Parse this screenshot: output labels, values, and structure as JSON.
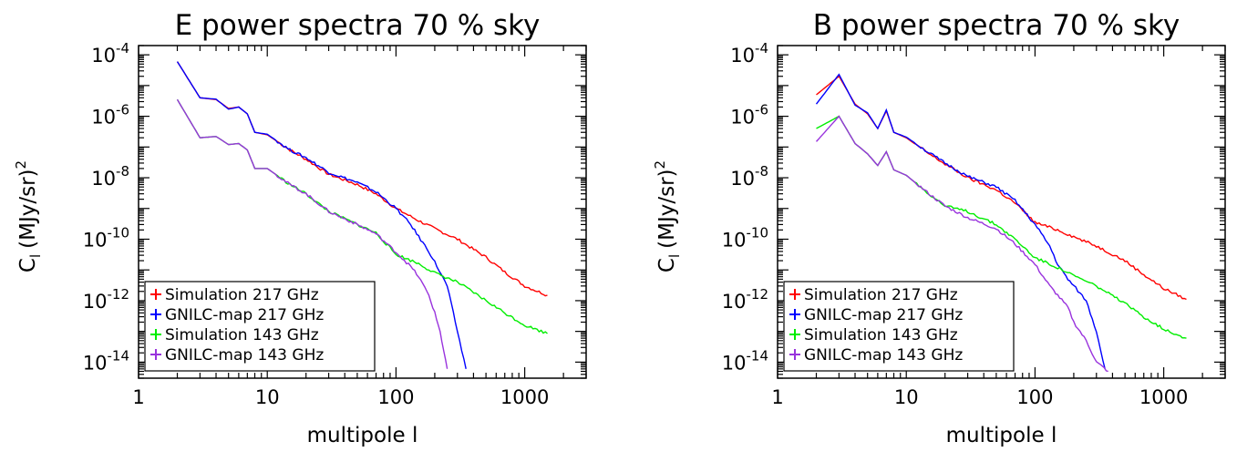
{
  "chart_data": [
    {
      "type": "line",
      "title": "E power spectra 70 % sky",
      "xlabel": "multipole l",
      "ylabel_base": "C",
      "ylabel_sub": "l",
      "ylabel_rest": "(MJy/sr)",
      "ylabel_sup": "2",
      "xscale": "log",
      "yscale": "log",
      "xlim": [
        1,
        3000
      ],
      "ylim": [
        3e-15,
        0.0002
      ],
      "x_ticks": [
        1,
        10,
        100,
        1000
      ],
      "x_tick_labels": [
        "1",
        "10",
        "100",
        "1000"
      ],
      "y_ticks": [
        1e-14,
        1e-12,
        1e-10,
        1e-08,
        1e-06,
        0.0001
      ],
      "y_tick_labels": [
        [
          "10",
          "-14"
        ],
        [
          "10",
          "-12"
        ],
        [
          "10",
          "-10"
        ],
        [
          "10",
          "-8"
        ],
        [
          "10",
          "-6"
        ],
        [
          "10",
          "-4"
        ]
      ],
      "legend_position": "bottom-left",
      "series": [
        {
          "name": "Simulation 217 GHz",
          "color": "#ff0000",
          "x": [
            2,
            3,
            4,
            5,
            6,
            7,
            8,
            10,
            15,
            20,
            30,
            50,
            70,
            100,
            150,
            200,
            300,
            500,
            700,
            1000,
            1500
          ],
          "y": [
            6e-05,
            4e-06,
            3.5e-06,
            1.8e-06,
            2e-06,
            1.2e-06,
            3e-07,
            2.5e-07,
            8e-08,
            4e-08,
            1.3e-08,
            6e-09,
            3e-09,
            1e-09,
            4e-10,
            2.2e-10,
            1e-10,
            2.6e-11,
            8.5e-12,
            3e-12,
            1.5e-12
          ]
        },
        {
          "name": "GNILC-map 217 GHz",
          "color": "#0000ff",
          "x": [
            2,
            3,
            4,
            5,
            6,
            7,
            8,
            10,
            15,
            20,
            30,
            50,
            70,
            100,
            130,
            150,
            180,
            200,
            250,
            300,
            350
          ],
          "y": [
            6e-05,
            4e-06,
            3.6e-06,
            1.7e-06,
            2e-06,
            1.2e-06,
            3e-07,
            2.6e-07,
            8e-08,
            4.5e-08,
            1.5e-08,
            7e-09,
            3.5e-09,
            1e-09,
            3e-10,
            1.2e-10,
            4e-11,
            1.8e-11,
            3e-12,
            1e-13,
            6e-15
          ]
        },
        {
          "name": "Simulation 143 GHz",
          "color": "#00ee00",
          "x": [
            2,
            3,
            4,
            5,
            6,
            7,
            8,
            10,
            15,
            20,
            30,
            50,
            70,
            100,
            150,
            200,
            300,
            500,
            700,
            1000,
            1500
          ],
          "y": [
            3.5e-06,
            2e-07,
            2.2e-07,
            1.2e-07,
            1.3e-07,
            8e-08,
            2e-08,
            2e-08,
            6e-09,
            3e-09,
            8e-10,
            3e-10,
            1.6e-10,
            3.2e-11,
            1.6e-11,
            8e-12,
            4e-12,
            1e-12,
            4e-13,
            1.6e-13,
            8.5e-14
          ]
        },
        {
          "name": "GNILC-map 143 GHz",
          "color": "#9933dd",
          "x": [
            2,
            3,
            4,
            5,
            6,
            7,
            8,
            10,
            15,
            20,
            30,
            50,
            70,
            100,
            130,
            150,
            180,
            200,
            220,
            250
          ],
          "y": [
            3.5e-06,
            2e-07,
            2.2e-07,
            1.2e-07,
            1.3e-07,
            8e-08,
            2e-08,
            2e-08,
            6e-09,
            3e-09,
            8e-10,
            3e-10,
            1.5e-10,
            3.8e-11,
            1.3e-11,
            6e-12,
            1.5e-12,
            4e-13,
            1e-13,
            6e-15
          ]
        }
      ]
    },
    {
      "type": "line",
      "title": "B power spectra 70 % sky",
      "xlabel": "multipole l",
      "ylabel_base": "C",
      "ylabel_sub": "l",
      "ylabel_rest": "(MJy/sr)",
      "ylabel_sup": "2",
      "xscale": "log",
      "yscale": "log",
      "xlim": [
        1,
        3000
      ],
      "ylim": [
        3e-15,
        0.0002
      ],
      "x_ticks": [
        1,
        10,
        100,
        1000
      ],
      "x_tick_labels": [
        "1",
        "10",
        "100",
        "1000"
      ],
      "y_ticks": [
        1e-14,
        1e-12,
        1e-10,
        1e-08,
        1e-06,
        0.0001
      ],
      "y_tick_labels": [
        [
          "10",
          "-14"
        ],
        [
          "10",
          "-12"
        ],
        [
          "10",
          "-10"
        ],
        [
          "10",
          "-8"
        ],
        [
          "10",
          "-6"
        ],
        [
          "10",
          "-4"
        ]
      ],
      "legend_position": "bottom-left",
      "series": [
        {
          "name": "Simulation 217 GHz",
          "color": "#ff0000",
          "x": [
            2,
            3,
            4,
            5,
            6,
            7,
            8,
            10,
            15,
            20,
            30,
            50,
            70,
            100,
            150,
            200,
            300,
            500,
            700,
            1000,
            1500
          ],
          "y": [
            5e-06,
            2e-05,
            2.5e-06,
            1.2e-06,
            4e-07,
            1.5e-06,
            3e-07,
            2e-07,
            6e-08,
            2.8e-08,
            1e-08,
            4e-09,
            1.5e-09,
            3.5e-10,
            2e-10,
            1.2e-10,
            6e-11,
            2e-11,
            7e-12,
            2.5e-12,
            1.1e-12
          ]
        },
        {
          "name": "GNILC-map 217 GHz",
          "color": "#0000ff",
          "x": [
            2,
            3,
            4,
            5,
            6,
            7,
            8,
            10,
            15,
            20,
            30,
            50,
            70,
            100,
            130,
            150,
            180,
            200,
            250,
            300,
            350
          ],
          "y": [
            2.5e-06,
            2.3e-05,
            2.3e-06,
            1.3e-06,
            4e-07,
            1.6e-06,
            3e-07,
            2.1e-07,
            6.5e-08,
            3e-08,
            1.1e-08,
            5e-09,
            1.8e-09,
            3e-10,
            6e-11,
            1.5e-11,
            5e-12,
            3e-12,
            1e-12,
            1e-13,
            6e-15
          ]
        },
        {
          "name": "Simulation 143 GHz",
          "color": "#00ee00",
          "x": [
            2,
            3,
            4,
            5,
            6,
            7,
            8,
            10,
            15,
            20,
            30,
            50,
            70,
            100,
            150,
            200,
            300,
            500,
            700,
            1000,
            1500
          ],
          "y": [
            4e-07,
            1e-06,
            1.3e-07,
            6e-08,
            2.5e-08,
            7e-08,
            1.8e-08,
            1.2e-08,
            3e-09,
            1.2e-09,
            8e-10,
            3e-10,
            1e-10,
            2.5e-11,
            1.2e-11,
            6.5e-12,
            3e-12,
            8e-13,
            3e-13,
            1.2e-13,
            6e-14
          ]
        },
        {
          "name": "GNILC-map 143 GHz",
          "color": "#9933dd",
          "x": [
            2,
            3,
            4,
            5,
            6,
            7,
            8,
            10,
            15,
            20,
            30,
            50,
            70,
            100,
            130,
            150,
            180,
            200,
            250,
            300,
            370
          ],
          "y": [
            1.5e-07,
            1e-06,
            1.3e-07,
            6e-08,
            2.5e-08,
            7e-08,
            1.8e-08,
            1.2e-08,
            3e-09,
            1.2e-09,
            5e-10,
            2.2e-10,
            7e-11,
            1.5e-11,
            3e-12,
            1.5e-12,
            6e-13,
            2e-13,
            5e-14,
            1e-14,
            5e-15
          ]
        }
      ]
    }
  ]
}
